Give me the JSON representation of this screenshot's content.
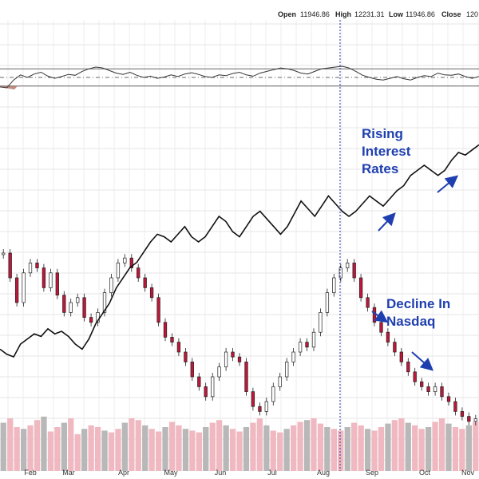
{
  "header": {
    "open_label": "Open",
    "open_value": "11946.86",
    "high_label": "High",
    "high_value": "12231.31",
    "low_label": "Low",
    "low_value": "11946.86",
    "close_label": "Close",
    "close_value": "120"
  },
  "chart_data": {
    "type": "line",
    "title": "",
    "months": [
      "Feb",
      "Mar",
      "Apr",
      "May",
      "Jun",
      "Jul",
      "Aug",
      "Sep",
      "Oct",
      "Nov"
    ],
    "marker_month": "Aug",
    "annotations": [
      {
        "lines": [
          "Rising",
          "Interest",
          "Rates"
        ]
      },
      {
        "lines": [
          "Decline In",
          "Nasdaq"
        ]
      }
    ],
    "series": [
      {
        "name": "",
        "kind": "rsi-indicator",
        "ylim": [
          0,
          100
        ],
        "bands": [
          30,
          50,
          70
        ],
        "values": [
          28,
          26,
          44,
          56,
          50,
          58,
          62,
          53,
          48,
          52,
          57,
          55,
          64,
          70,
          74,
          72,
          66,
          60,
          57,
          62,
          55,
          50,
          53,
          48,
          51,
          56,
          52,
          58,
          61,
          57,
          52,
          50,
          56,
          54,
          59,
          62,
          56,
          53,
          60,
          64,
          68,
          72,
          70,
          66,
          60,
          58,
          64,
          70,
          72,
          74,
          76,
          72,
          64,
          55,
          50,
          46,
          44,
          48,
          52,
          47,
          44,
          50,
          54,
          52,
          60,
          56,
          55,
          58,
          52,
          48,
          52
        ]
      },
      {
        "name": "",
        "kind": "rates-line",
        "ylim": [
          0,
          100
        ],
        "values": [
          18,
          16,
          15,
          20,
          22,
          24,
          23,
          26,
          24,
          25,
          23,
          20,
          18,
          22,
          28,
          32,
          36,
          42,
          46,
          50,
          52,
          56,
          60,
          63,
          62,
          60,
          63,
          66,
          62,
          60,
          62,
          66,
          70,
          68,
          64,
          62,
          66,
          70,
          72,
          69,
          66,
          63,
          66,
          71,
          76,
          73,
          70,
          74,
          78,
          75,
          72,
          70,
          72,
          75,
          78,
          76,
          74,
          77,
          80,
          82,
          86,
          88,
          90,
          88,
          86,
          88,
          92,
          95,
          94,
          96,
          98
        ]
      },
      {
        "name": "",
        "kind": "price-candles",
        "ylim": [
          0,
          100
        ],
        "values": [
          80,
          70,
          60,
          72,
          76,
          74,
          66,
          72,
          63,
          56,
          60,
          62,
          54,
          52,
          56,
          64,
          70,
          76,
          78,
          74,
          70,
          66,
          62,
          52,
          46,
          44,
          40,
          36,
          30,
          26,
          22,
          30,
          34,
          40,
          38,
          36,
          24,
          18,
          16,
          20,
          26,
          30,
          36,
          40,
          44,
          42,
          48,
          56,
          64,
          70,
          74,
          76,
          70,
          62,
          58,
          52,
          48,
          44,
          40,
          36,
          32,
          28,
          26,
          24,
          26,
          22,
          20,
          16,
          14,
          12,
          13
        ]
      },
      {
        "name": "",
        "kind": "volume-bars",
        "ylim": [
          0,
          100
        ],
        "values": [
          55,
          60,
          50,
          48,
          52,
          58,
          62,
          45,
          50,
          55,
          60,
          42,
          48,
          52,
          50,
          46,
          44,
          48,
          55,
          60,
          58,
          52,
          48,
          45,
          50,
          56,
          52,
          48,
          46,
          44,
          50,
          55,
          58,
          52,
          48,
          45,
          50,
          55,
          60,
          52,
          46,
          44,
          48,
          52,
          56,
          58,
          60,
          54,
          50,
          48,
          46,
          50,
          55,
          52,
          48,
          46,
          50,
          54,
          58,
          60,
          55,
          52,
          48,
          50,
          56,
          60,
          54,
          50,
          48,
          52,
          56
        ]
      }
    ]
  }
}
